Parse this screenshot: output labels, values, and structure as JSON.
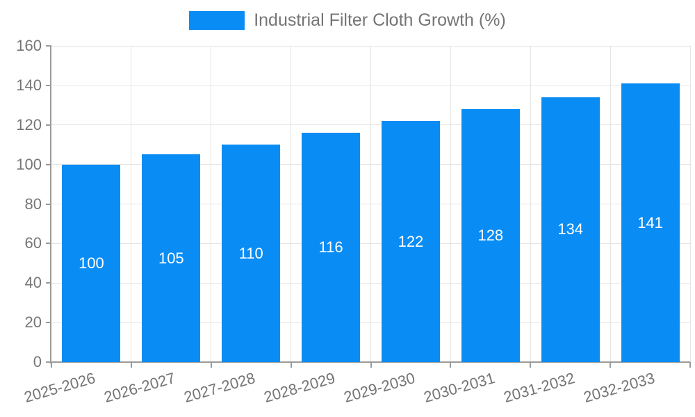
{
  "chart_data": {
    "type": "bar",
    "title": "Industrial Filter Cloth Growth (%)",
    "categories": [
      "2025-2026",
      "2026-2027",
      "2027-2028",
      "2028-2029",
      "2029-2030",
      "2030-2031",
      "2031-2032",
      "2032-2033"
    ],
    "values": [
      100,
      105,
      110,
      116,
      122,
      128,
      134,
      141
    ],
    "xlabel": "",
    "ylabel": "",
    "ylim": [
      0,
      160
    ],
    "ytick_step": 20,
    "ytick_labels": [
      "0",
      "20",
      "40",
      "60",
      "80",
      "100",
      "120",
      "140",
      "160"
    ],
    "grid": true,
    "value_labels_position": "inside-center",
    "legend_position": "top-center"
  },
  "colors": {
    "bar": "#0a8cf5",
    "grid_line": "#e4e4e4",
    "axis_line": "#9a9a9a",
    "tick_mark": "#9a9a9a",
    "axis_text": "#757575",
    "value_label_text": "#ffffff",
    "background": "#ffffff"
  }
}
